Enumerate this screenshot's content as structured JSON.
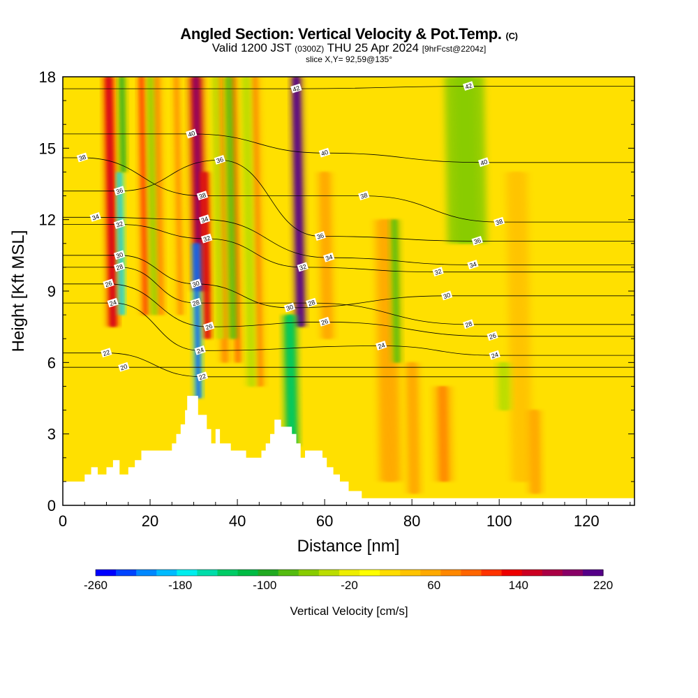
{
  "header": {
    "title_main": "Angled Section: Vertical Velocity & Pot.Temp.",
    "title_suffix": "(C)",
    "valid_prefix": "Valid 1200 JST",
    "valid_utc": "(0300Z)",
    "valid_date": "THU 25 Apr 2024",
    "forecast_info": "[9hrFcst@2204z]",
    "slice_info": "slice X,Y= 92,59@135°"
  },
  "chart_data": {
    "type": "heatmap",
    "xlabel": "Distance [nm]",
    "ylabel": "Height [Kft MSL]",
    "xlim": [
      0,
      131
    ],
    "ylim": [
      0,
      18
    ],
    "x_ticks": [
      "0",
      "20",
      "40",
      "60",
      "80",
      "100",
      "120"
    ],
    "x_tick_values": [
      0,
      20,
      40,
      60,
      80,
      100,
      120
    ],
    "y_ticks": [
      "0",
      "3",
      "6",
      "9",
      "12",
      "15",
      "18"
    ],
    "y_tick_values": [
      0,
      3,
      6,
      9,
      12,
      15,
      18
    ],
    "grid": false,
    "colorbar": {
      "label": "Vertical Velocity [cm/s]",
      "tick_labels": [
        "-260",
        "-180",
        "-100",
        "-20",
        "60",
        "140",
        "220"
      ],
      "tick_values": [
        -260,
        -180,
        -100,
        -20,
        60,
        140,
        220
      ],
      "min": -260,
      "max": 220,
      "colors": [
        "#0000ff",
        "#0044ff",
        "#0088ff",
        "#00bbff",
        "#00eeee",
        "#00ddaa",
        "#00cc66",
        "#00bb44",
        "#22aa22",
        "#55bb11",
        "#88cc00",
        "#bbdd00",
        "#eeee00",
        "#ffff00",
        "#ffdd00",
        "#ffc400",
        "#ffaa00",
        "#ff8800",
        "#ff6600",
        "#ff3300",
        "#ee0000",
        "#cc0022",
        "#aa0044",
        "#880066",
        "#550088"
      ]
    },
    "updraft_columns": [
      {
        "x": 10.5,
        "value": 140,
        "ytop": 18,
        "ybot": 7.5,
        "w": 2.2
      },
      {
        "x": 18,
        "value": 100,
        "ytop": 18,
        "ybot": 8,
        "w": 1.5
      },
      {
        "x": 21.5,
        "value": 70,
        "ytop": 18,
        "ybot": 8,
        "w": 1.5
      },
      {
        "x": 26,
        "value": 60,
        "ytop": 18,
        "ybot": 8,
        "w": 1.5
      },
      {
        "x": 30.5,
        "value": 160,
        "ytop": 18,
        "ybot": 9,
        "w": 3
      },
      {
        "x": 32.5,
        "value": 130,
        "ytop": 14,
        "ybot": 7,
        "w": 1.6
      },
      {
        "x": 36,
        "value": 70,
        "ytop": 18,
        "ybot": 6,
        "w": 1.5
      },
      {
        "x": 39,
        "value": 80,
        "ytop": 18,
        "ybot": 6,
        "w": 1.5
      },
      {
        "x": 44,
        "value": 60,
        "ytop": 18,
        "ybot": 5,
        "w": 2
      },
      {
        "x": 53.5,
        "value": 220,
        "ytop": 18,
        "ybot": 7.5,
        "w": 2.2
      },
      {
        "x": 60,
        "value": 50,
        "ytop": 14,
        "ybot": 7,
        "w": 3
      },
      {
        "x": 74,
        "value": 50,
        "ytop": 12,
        "ybot": 1,
        "w": 5
      },
      {
        "x": 80,
        "value": 55,
        "ytop": 6,
        "ybot": 0.5,
        "w": 3
      },
      {
        "x": 87,
        "value": 65,
        "ytop": 5,
        "ybot": 1,
        "w": 4
      },
      {
        "x": 104,
        "value": 40,
        "ytop": 14,
        "ybot": 1,
        "w": 5
      },
      {
        "x": 108,
        "value": 55,
        "ytop": 4,
        "ybot": 0.5,
        "w": 3
      }
    ],
    "downdraft_columns": [
      {
        "x": 13,
        "value": -170,
        "ytop": 14,
        "ybot": 8,
        "w": 1.2
      },
      {
        "x": 13.5,
        "value": -80,
        "ytop": 18,
        "ybot": 14,
        "w": 1.5
      },
      {
        "x": 20,
        "value": -50,
        "ytop": 18,
        "ybot": 8,
        "w": 1.2
      },
      {
        "x": 30.5,
        "value": -200,
        "ytop": 11,
        "ybot": 4.5,
        "w": 1.6
      },
      {
        "x": 35,
        "value": -40,
        "ytop": 18,
        "ybot": 7,
        "w": 1.5
      },
      {
        "x": 38,
        "value": -70,
        "ytop": 18,
        "ybot": 7,
        "w": 1.5
      },
      {
        "x": 42,
        "value": -30,
        "ytop": 18,
        "ybot": 5,
        "w": 2
      },
      {
        "x": 52,
        "value": -110,
        "ytop": 8,
        "ybot": 2.5,
        "w": 3
      },
      {
        "x": 76,
        "value": -60,
        "ytop": 12,
        "ybot": 6,
        "w": 2
      },
      {
        "x": 92,
        "value": -50,
        "ytop": 18,
        "ybot": 11,
        "w": 9
      },
      {
        "x": 101,
        "value": -40,
        "ytop": 6,
        "ybot": 4,
        "w": 3
      }
    ],
    "terrain": {
      "x": [
        0,
        0,
        5,
        5,
        6.5,
        6.5,
        8,
        8,
        10,
        10,
        11.5,
        11.5,
        13,
        13,
        15,
        15,
        16.5,
        16.5,
        18,
        18,
        25,
        25,
        26,
        26,
        27,
        27,
        28,
        28,
        28.5,
        28.5,
        31,
        31,
        33,
        33,
        34,
        34,
        35,
        35,
        36,
        36,
        38.5,
        38.5,
        39.5,
        39.5,
        42,
        42,
        44,
        44,
        45.5,
        45.5,
        46.5,
        46.5,
        47.5,
        47.5,
        48.5,
        48.5,
        50,
        50,
        52.5,
        52.5,
        53.5,
        53.5,
        54.5,
        54.5,
        55.5,
        55.5,
        58.5,
        58.5,
        59.5,
        59.5,
        60.5,
        60.5,
        62,
        62,
        63.5,
        63.5,
        65.5,
        65.5,
        67,
        67,
        68.5,
        68.5,
        70,
        70,
        131,
        131
      ],
      "y": [
        0,
        1,
        1,
        1.3,
        1.3,
        1.6,
        1.6,
        1.3,
        1.3,
        1.6,
        1.6,
        1.9,
        1.9,
        1.3,
        1.3,
        1.6,
        1.6,
        1.9,
        1.9,
        2.3,
        2.3,
        2.6,
        2.6,
        3,
        3,
        3.4,
        3.4,
        4,
        4,
        4.6,
        4.6,
        3.8,
        3.8,
        3.2,
        3.2,
        2.6,
        2.6,
        3.2,
        3.2,
        2.6,
        2.6,
        2.3,
        2.3,
        2.3,
        2.3,
        2,
        2,
        2,
        2,
        2.3,
        2.3,
        2.6,
        2.6,
        3,
        3,
        3.6,
        3.6,
        3.3,
        3.3,
        3,
        3,
        2.6,
        2.6,
        2,
        2,
        2.3,
        2.3,
        2.3,
        2.3,
        2,
        2,
        1.6,
        1.6,
        1.3,
        1.3,
        1,
        1,
        0.6,
        0.6,
        0.6,
        0.6,
        0.3,
        0.3,
        0.3,
        0.3,
        0
      ]
    },
    "theta_contour_labels": [
      {
        "text": "38",
        "x": 4.5,
        "y": 14.6
      },
      {
        "text": "34",
        "x": 7.5,
        "y": 12.1
      },
      {
        "text": "36",
        "x": 13,
        "y": 13.2
      },
      {
        "text": "32",
        "x": 13,
        "y": 11.8
      },
      {
        "text": "30",
        "x": 13,
        "y": 10.5
      },
      {
        "text": "28",
        "x": 13,
        "y": 10
      },
      {
        "text": "26",
        "x": 10.5,
        "y": 9.3
      },
      {
        "text": "24",
        "x": 11.5,
        "y": 8.5
      },
      {
        "text": "22",
        "x": 10,
        "y": 6.4
      },
      {
        "text": "20",
        "x": 14,
        "y": 5.8
      },
      {
        "text": "40",
        "x": 29.5,
        "y": 15.6
      },
      {
        "text": "36",
        "x": 36,
        "y": 14.5
      },
      {
        "text": "38",
        "x": 32,
        "y": 13
      },
      {
        "text": "34",
        "x": 32.5,
        "y": 12
      },
      {
        "text": "32",
        "x": 33,
        "y": 11.2
      },
      {
        "text": "30",
        "x": 30.5,
        "y": 9.3
      },
      {
        "text": "28",
        "x": 30.5,
        "y": 8.5
      },
      {
        "text": "26",
        "x": 33.5,
        "y": 7.5
      },
      {
        "text": "24",
        "x": 31.5,
        "y": 6.5
      },
      {
        "text": "22",
        "x": 32,
        "y": 5.4
      },
      {
        "text": "42",
        "x": 53.5,
        "y": 17.5
      },
      {
        "text": "40",
        "x": 60,
        "y": 14.8
      },
      {
        "text": "38",
        "x": 69,
        "y": 13
      },
      {
        "text": "36",
        "x": 59,
        "y": 11.3
      },
      {
        "text": "34",
        "x": 61,
        "y": 10.4
      },
      {
        "text": "32",
        "x": 55,
        "y": 10
      },
      {
        "text": "30",
        "x": 52,
        "y": 8.3
      },
      {
        "text": "28",
        "x": 57,
        "y": 8.5
      },
      {
        "text": "26",
        "x": 60,
        "y": 7.7
      },
      {
        "text": "24",
        "x": 73,
        "y": 6.7
      },
      {
        "text": "42",
        "x": 93,
        "y": 17.6
      },
      {
        "text": "40",
        "x": 96.5,
        "y": 14.4
      },
      {
        "text": "38",
        "x": 100,
        "y": 11.9
      },
      {
        "text": "36",
        "x": 95,
        "y": 11.1
      },
      {
        "text": "34",
        "x": 94,
        "y": 10.1
      },
      {
        "text": "32",
        "x": 86,
        "y": 9.8
      },
      {
        "text": "30",
        "x": 88,
        "y": 8.8
      },
      {
        "text": "28",
        "x": 93,
        "y": 7.6
      },
      {
        "text": "26",
        "x": 98.5,
        "y": 7.1
      },
      {
        "text": "24",
        "x": 99,
        "y": 6.3
      }
    ]
  }
}
